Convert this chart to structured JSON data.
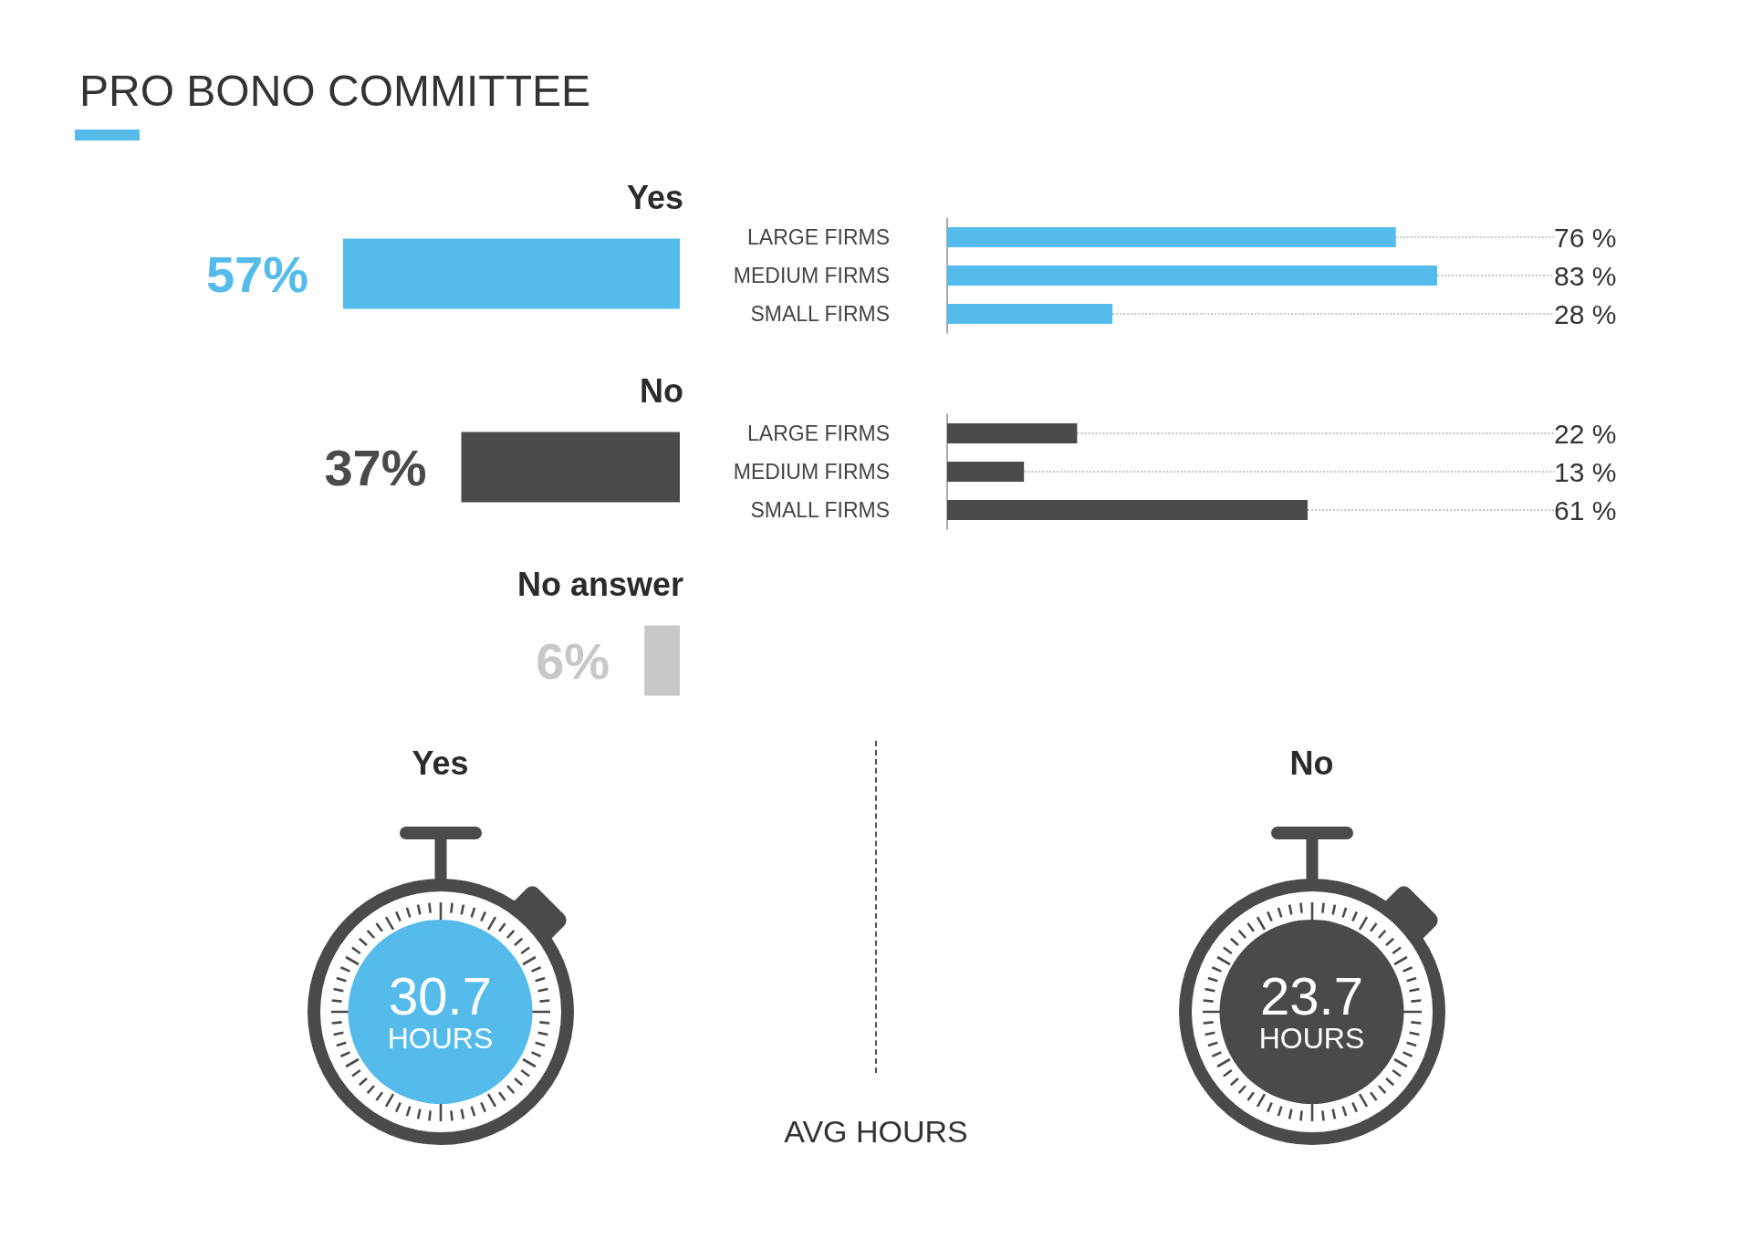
{
  "chart_data": [
    {
      "type": "bar",
      "title": "PRO BONO COMMITTEE",
      "orientation": "horizontal",
      "categories": [
        "Yes",
        "No",
        "No answer"
      ],
      "values": [
        57,
        37,
        6
      ],
      "colors": [
        "#55bbeb",
        "#4a4a49",
        "#c8c8c8"
      ],
      "value_labels": [
        "57%",
        "37%",
        "6%"
      ],
      "tick_labels": "y"
    },
    {
      "type": "bar",
      "orientation": "horizontal",
      "categories": [
        "LARGE FIRMS",
        "MEDIUM FIRMS",
        "SMALL FIRMS"
      ],
      "values": [
        76,
        83,
        28
      ],
      "color": "#55bbeb",
      "value_labels": [
        "76 %",
        "83 %",
        "28 %"
      ],
      "tick_labels": "y"
    },
    {
      "type": "bar",
      "orientation": "horizontal",
      "categories": [
        "LARGE FIRMS",
        "MEDIUM FIRMS",
        "SMALL FIRMS"
      ],
      "values": [
        22,
        13,
        61
      ],
      "color": "#4a4a49",
      "value_labels": [
        "22 %",
        "13 %",
        "61 %"
      ],
      "tick_labels": "y"
    },
    {
      "type": "other",
      "title": "AVG HOURS",
      "ylabel": "HOURS",
      "categories": [
        "Yes",
        "No"
      ],
      "values": [
        30.7,
        23.7
      ],
      "colors": [
        "#55bbeb",
        "#4a4a49"
      ],
      "data_labels": true
    }
  ]
}
